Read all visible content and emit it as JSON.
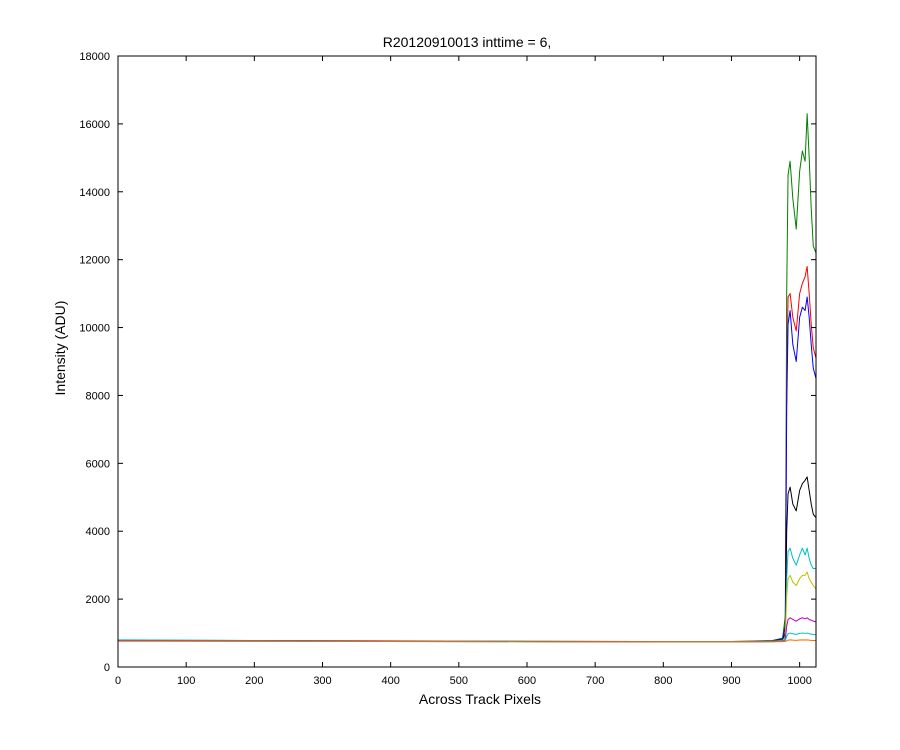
{
  "chart_data": {
    "type": "line",
    "title": "R20120910013 inttime = 6,",
    "xlabel": "Across Track Pixels",
    "ylabel": "Intensity (ADU)",
    "xlim": [
      0,
      1024
    ],
    "ylim": [
      0,
      18000
    ],
    "xticks": [
      0,
      100,
      200,
      300,
      400,
      500,
      600,
      700,
      800,
      900,
      1000
    ],
    "yticks": [
      0,
      2000,
      4000,
      6000,
      8000,
      10000,
      12000,
      14000,
      16000,
      18000
    ],
    "grid": false,
    "legend": "none",
    "series": [
      {
        "color": "#007f00",
        "x": [
          0,
          200,
          400,
          600,
          800,
          900,
          960,
          975,
          979,
          981,
          983,
          986,
          990,
          995,
          1000,
          1004,
          1008,
          1011,
          1014,
          1017,
          1020,
          1024
        ],
        "y": [
          790,
          780,
          770,
          760,
          750,
          750,
          780,
          850,
          1500,
          11000,
          14500,
          14900,
          13800,
          12900,
          14600,
          15200,
          14900,
          16300,
          15000,
          13500,
          12400,
          12200
        ]
      },
      {
        "color": "#ff0000",
        "x": [
          0,
          200,
          400,
          600,
          800,
          900,
          960,
          975,
          979,
          981,
          983,
          986,
          990,
          995,
          1000,
          1004,
          1008,
          1011,
          1014,
          1017,
          1020,
          1024
        ],
        "y": [
          780,
          770,
          760,
          750,
          740,
          740,
          770,
          820,
          1200,
          8200,
          10900,
          11000,
          10300,
          9900,
          11000,
          11300,
          11500,
          11800,
          11000,
          10100,
          9400,
          9100
        ]
      },
      {
        "color": "#0000ff",
        "x": [
          0,
          200,
          400,
          600,
          800,
          900,
          960,
          975,
          979,
          981,
          983,
          986,
          990,
          995,
          1000,
          1004,
          1008,
          1011,
          1014,
          1017,
          1020,
          1024
        ],
        "y": [
          780,
          770,
          760,
          750,
          740,
          740,
          770,
          820,
          1200,
          7600,
          10100,
          10500,
          9500,
          9000,
          10300,
          10600,
          10500,
          10900,
          10300,
          9500,
          8800,
          8500
        ]
      },
      {
        "color": "#000000",
        "x": [
          0,
          200,
          400,
          600,
          800,
          900,
          960,
          975,
          979,
          981,
          983,
          986,
          990,
          995,
          1000,
          1004,
          1008,
          1011,
          1014,
          1017,
          1020,
          1024
        ],
        "y": [
          780,
          770,
          760,
          750,
          740,
          740,
          760,
          800,
          1000,
          4000,
          5100,
          5300,
          4800,
          4600,
          5200,
          5400,
          5500,
          5600,
          5200,
          4800,
          4500,
          4400
        ]
      },
      {
        "color": "#00bfbf",
        "x": [
          0,
          200,
          400,
          600,
          800,
          900,
          960,
          975,
          979,
          981,
          983,
          986,
          990,
          995,
          1000,
          1004,
          1008,
          1011,
          1014,
          1017,
          1020,
          1024
        ],
        "y": [
          800,
          780,
          770,
          760,
          750,
          750,
          760,
          790,
          900,
          2600,
          3400,
          3500,
          3200,
          3000,
          3300,
          3500,
          3300,
          3500,
          3200,
          3000,
          2900,
          2900
        ]
      },
      {
        "color": "#bfbf00",
        "x": [
          0,
          200,
          400,
          600,
          800,
          900,
          960,
          975,
          979,
          981,
          983,
          986,
          990,
          995,
          1000,
          1004,
          1008,
          1011,
          1014,
          1017,
          1020,
          1024
        ],
        "y": [
          780,
          770,
          760,
          750,
          740,
          740,
          755,
          780,
          850,
          2100,
          2600,
          2700,
          2500,
          2400,
          2600,
          2700,
          2700,
          2800,
          2600,
          2500,
          2400,
          2300
        ]
      },
      {
        "color": "#bf00bf",
        "x": [
          0,
          200,
          400,
          600,
          800,
          900,
          960,
          975,
          979,
          981,
          983,
          986,
          990,
          995,
          1000,
          1004,
          1008,
          1011,
          1014,
          1017,
          1020,
          1024
        ],
        "y": [
          780,
          770,
          760,
          750,
          740,
          740,
          750,
          770,
          800,
          1200,
          1400,
          1450,
          1400,
          1350,
          1420,
          1450,
          1420,
          1450,
          1400,
          1380,
          1350,
          1330
        ]
      },
      {
        "color": "#00bfbf",
        "x": [
          0,
          200,
          400,
          600,
          800,
          900,
          960,
          975,
          979,
          981,
          983,
          986,
          990,
          995,
          1000,
          1004,
          1008,
          1011,
          1014,
          1017,
          1020,
          1024
        ],
        "y": [
          770,
          760,
          750,
          745,
          740,
          740,
          745,
          760,
          780,
          900,
          980,
          1000,
          980,
          960,
          990,
          1000,
          990,
          1000,
          980,
          970,
          960,
          950
        ]
      },
      {
        "color": "#ff6600",
        "x": [
          0,
          200,
          400,
          600,
          800,
          900,
          960,
          975,
          979,
          981,
          983,
          986,
          990,
          995,
          1000,
          1004,
          1008,
          1011,
          1014,
          1017,
          1020,
          1024
        ],
        "y": [
          760,
          755,
          750,
          745,
          740,
          740,
          742,
          748,
          755,
          770,
          790,
          800,
          790,
          785,
          795,
          800,
          795,
          800,
          790,
          785,
          780,
          780
        ]
      }
    ]
  }
}
